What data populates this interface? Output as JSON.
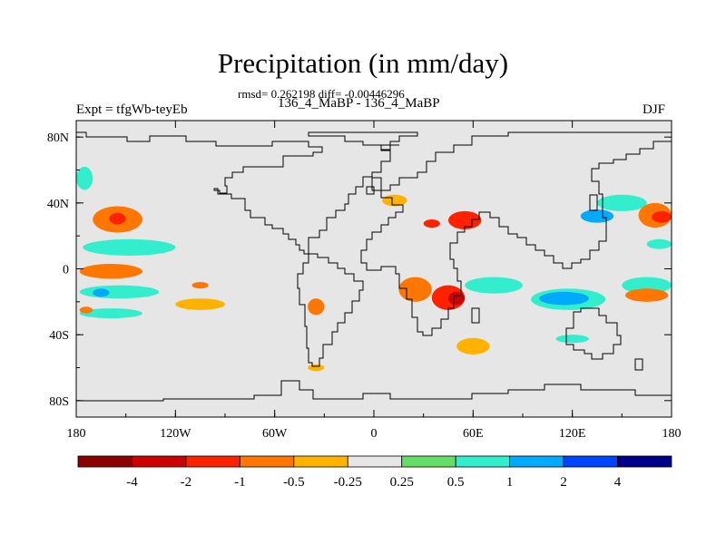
{
  "chart_data": {
    "type": "heatmap",
    "title": "Precipitation (in mm/day)",
    "subtitle": "rmsd= 0.262198 diff= -0.00446296",
    "comparison": "136_4_MaBP - 136_4_MaBP",
    "left_label": "Expt = tfgWb-teyEb",
    "right_label": "DJF",
    "xlim": [
      -180,
      180
    ],
    "ylim": [
      -90,
      90
    ],
    "x_ticks": [
      {
        "value": -180,
        "label": "180"
      },
      {
        "value": -120,
        "label": "120W"
      },
      {
        "value": -60,
        "label": "60W"
      },
      {
        "value": 0,
        "label": "0"
      },
      {
        "value": 60,
        "label": "60E"
      },
      {
        "value": 120,
        "label": "120E"
      },
      {
        "value": 180,
        "label": "180"
      }
    ],
    "y_ticks": [
      {
        "value": 80,
        "label": "80N"
      },
      {
        "value": 40,
        "label": "40N"
      },
      {
        "value": 0,
        "label": "0"
      },
      {
        "value": -40,
        "label": "40S"
      },
      {
        "value": -80,
        "label": "80S"
      }
    ],
    "colorbar": {
      "colors": [
        "#8b0000",
        "#cc0000",
        "#ff2200",
        "#ff7700",
        "#ffb300",
        "#e6e6e6",
        "#66dd66",
        "#33eecc",
        "#00aaff",
        "#0044ff",
        "#000088"
      ],
      "labels": [
        "-4",
        "-2",
        "-1",
        "-0.5",
        "-0.25",
        "0.25",
        "0.5",
        "1",
        "2",
        "4"
      ]
    },
    "anomaly_regions": [
      {
        "lon": [
          -170,
          -140
        ],
        "lat": [
          22,
          38
        ],
        "value": -0.5
      },
      {
        "lon": [
          -160,
          -150
        ],
        "lat": [
          27,
          34
        ],
        "value": -1
      },
      {
        "lon": [
          -176,
          -120
        ],
        "lat": [
          8,
          18
        ],
        "value": 0.5
      },
      {
        "lon": [
          -178,
          -140
        ],
        "lat": [
          -6,
          3
        ],
        "value": -0.5
      },
      {
        "lon": [
          -178,
          -130
        ],
        "lat": [
          -18,
          -10
        ],
        "value": 0.5
      },
      {
        "lon": [
          -170,
          -160
        ],
        "lat": [
          -17,
          -12
        ],
        "value": 1
      },
      {
        "lon": [
          -178,
          -140
        ],
        "lat": [
          -30,
          -24
        ],
        "value": 0.5
      },
      {
        "lon": [
          -120,
          -90
        ],
        "lat": [
          -25,
          -18
        ],
        "value": -0.25
      },
      {
        "lon": [
          -178,
          -170
        ],
        "lat": [
          -27,
          -23
        ],
        "value": -0.5
      },
      {
        "lon": [
          -180,
          -170
        ],
        "lat": [
          48,
          62
        ],
        "value": 0.5
      },
      {
        "lon": [
          -40,
          -30
        ],
        "lat": [
          -28,
          -18
        ],
        "value": -0.5
      },
      {
        "lon": [
          5,
          20
        ],
        "lat": [
          38,
          45
        ],
        "value": -0.25
      },
      {
        "lon": [
          15,
          35
        ],
        "lat": [
          -20,
          -5
        ],
        "value": -0.5
      },
      {
        "lon": [
          35,
          55
        ],
        "lat": [
          -25,
          -10
        ],
        "value": -1
      },
      {
        "lon": [
          45,
          55
        ],
        "lat": [
          -22,
          -14
        ],
        "value": -2
      },
      {
        "lon": [
          50,
          70
        ],
        "lat": [
          -52,
          -42
        ],
        "value": -0.25
      },
      {
        "lon": [
          55,
          90
        ],
        "lat": [
          -15,
          -5
        ],
        "value": 0.5
      },
      {
        "lon": [
          60,
          80
        ],
        "lat": [
          -12,
          -6
        ],
        "value": 0.5
      },
      {
        "lon": [
          95,
          140
        ],
        "lat": [
          -25,
          -12
        ],
        "value": 0.5
      },
      {
        "lon": [
          100,
          130
        ],
        "lat": [
          -22,
          -14
        ],
        "value": 1
      },
      {
        "lon": [
          150,
          180
        ],
        "lat": [
          -15,
          -5
        ],
        "value": 0.5
      },
      {
        "lon": [
          152,
          178
        ],
        "lat": [
          -20,
          -12
        ],
        "value": -0.5
      },
      {
        "lon": [
          135,
          165
        ],
        "lat": [
          35,
          45
        ],
        "value": 0.5
      },
      {
        "lon": [
          160,
          180
        ],
        "lat": [
          25,
          40
        ],
        "value": -0.5
      },
      {
        "lon": [
          168,
          180
        ],
        "lat": [
          28,
          35
        ],
        "value": -1
      },
      {
        "lon": [
          125,
          145
        ],
        "lat": [
          28,
          36
        ],
        "value": 1
      },
      {
        "lon": [
          165,
          180
        ],
        "lat": [
          12,
          18
        ],
        "value": 0.5
      },
      {
        "lon": [
          30,
          40
        ],
        "lat": [
          25,
          30
        ],
        "value": -1
      },
      {
        "lon": [
          45,
          65
        ],
        "lat": [
          24,
          35
        ],
        "value": -1
      },
      {
        "lon": [
          -110,
          -100
        ],
        "lat": [
          -12,
          -8
        ],
        "value": -0.5
      },
      {
        "lon": [
          110,
          130
        ],
        "lat": [
          -45,
          -40
        ],
        "value": 0.5
      },
      {
        "lon": [
          -40,
          -30
        ],
        "lat": [
          -62,
          -58
        ],
        "value": -0.25
      }
    ]
  }
}
